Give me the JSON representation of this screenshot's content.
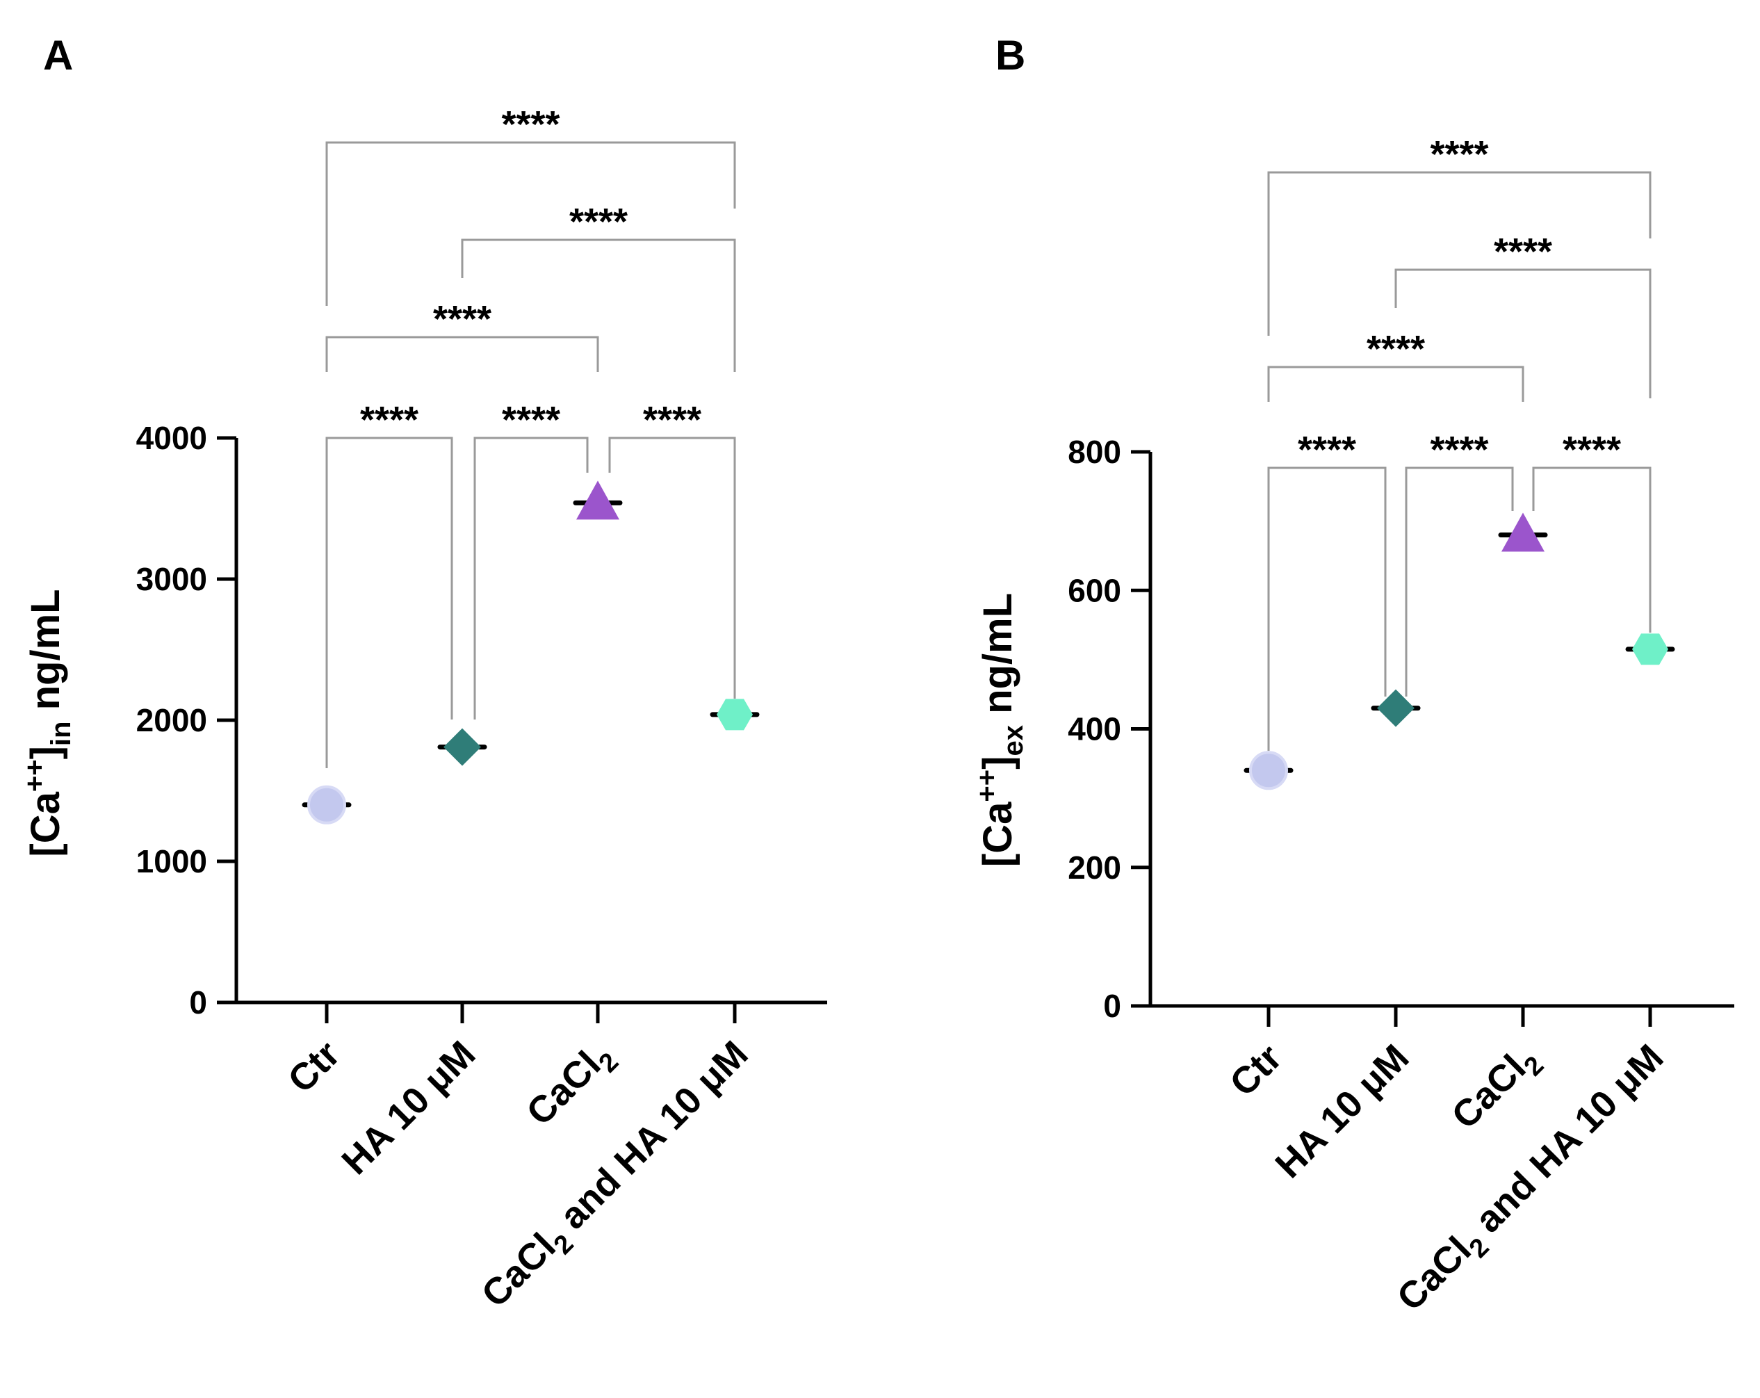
{
  "chart_data": [
    {
      "panel": "A",
      "type": "scatter",
      "ylabel_main": "[Ca",
      "ylabel_sup": "++",
      "ylabel_close": "]",
      "ylabel_sub": "in",
      "ylabel_unit": " ng/mL",
      "ylim": [
        0,
        4000
      ],
      "yticks": [
        "0",
        "1000",
        "2000",
        "3000",
        "4000"
      ],
      "categories": [
        {
          "main": "Ctr"
        },
        {
          "main": "HA 10 μM"
        },
        {
          "main": "CaCl",
          "sub": "2"
        },
        {
          "main": "CaCl",
          "sub": "2",
          "rest": " and HA 10 μM"
        }
      ],
      "values": [
        1400,
        1810,
        3540,
        2040
      ],
      "colors": [
        "#c3c8ee",
        "#2f7d78",
        "#9b55cc",
        "#6ff0c8"
      ],
      "markers": [
        "circle",
        "diamond",
        "triangle",
        "hexagon"
      ],
      "comparisons": [
        {
          "from": 0,
          "to": 3,
          "label": "****"
        },
        {
          "from": 1,
          "to": 3,
          "label": "****"
        },
        {
          "from": 0,
          "to": 2,
          "label": "****"
        },
        {
          "from": 0,
          "to": 1,
          "label": "****"
        },
        {
          "from": 1,
          "to": 2,
          "label": "****"
        },
        {
          "from": 2,
          "to": 3,
          "label": "****"
        }
      ]
    },
    {
      "panel": "B",
      "type": "scatter",
      "ylabel_main": "[Ca",
      "ylabel_sup": "++",
      "ylabel_close": "]",
      "ylabel_sub": "ex",
      "ylabel_unit": " ng/mL",
      "ylim": [
        0,
        800
      ],
      "yticks": [
        "0",
        "200",
        "400",
        "600",
        "800"
      ],
      "categories": [
        {
          "main": "Ctr"
        },
        {
          "main": "HA 10 μM"
        },
        {
          "main": "CaCl",
          "sub": "2"
        },
        {
          "main": "CaCl",
          "sub": "2",
          "rest": " and HA 10 μM"
        }
      ],
      "values": [
        340,
        430,
        680,
        515
      ],
      "colors": [
        "#c3c8ee",
        "#2f7d78",
        "#9b55cc",
        "#6ff0c8"
      ],
      "markers": [
        "circle",
        "diamond",
        "triangle",
        "hexagon"
      ],
      "comparisons": [
        {
          "from": 0,
          "to": 3,
          "label": "****"
        },
        {
          "from": 1,
          "to": 3,
          "label": "****"
        },
        {
          "from": 0,
          "to": 2,
          "label": "****"
        },
        {
          "from": 0,
          "to": 1,
          "label": "****"
        },
        {
          "from": 1,
          "to": 2,
          "label": "****"
        },
        {
          "from": 2,
          "to": 3,
          "label": "****"
        }
      ]
    }
  ]
}
